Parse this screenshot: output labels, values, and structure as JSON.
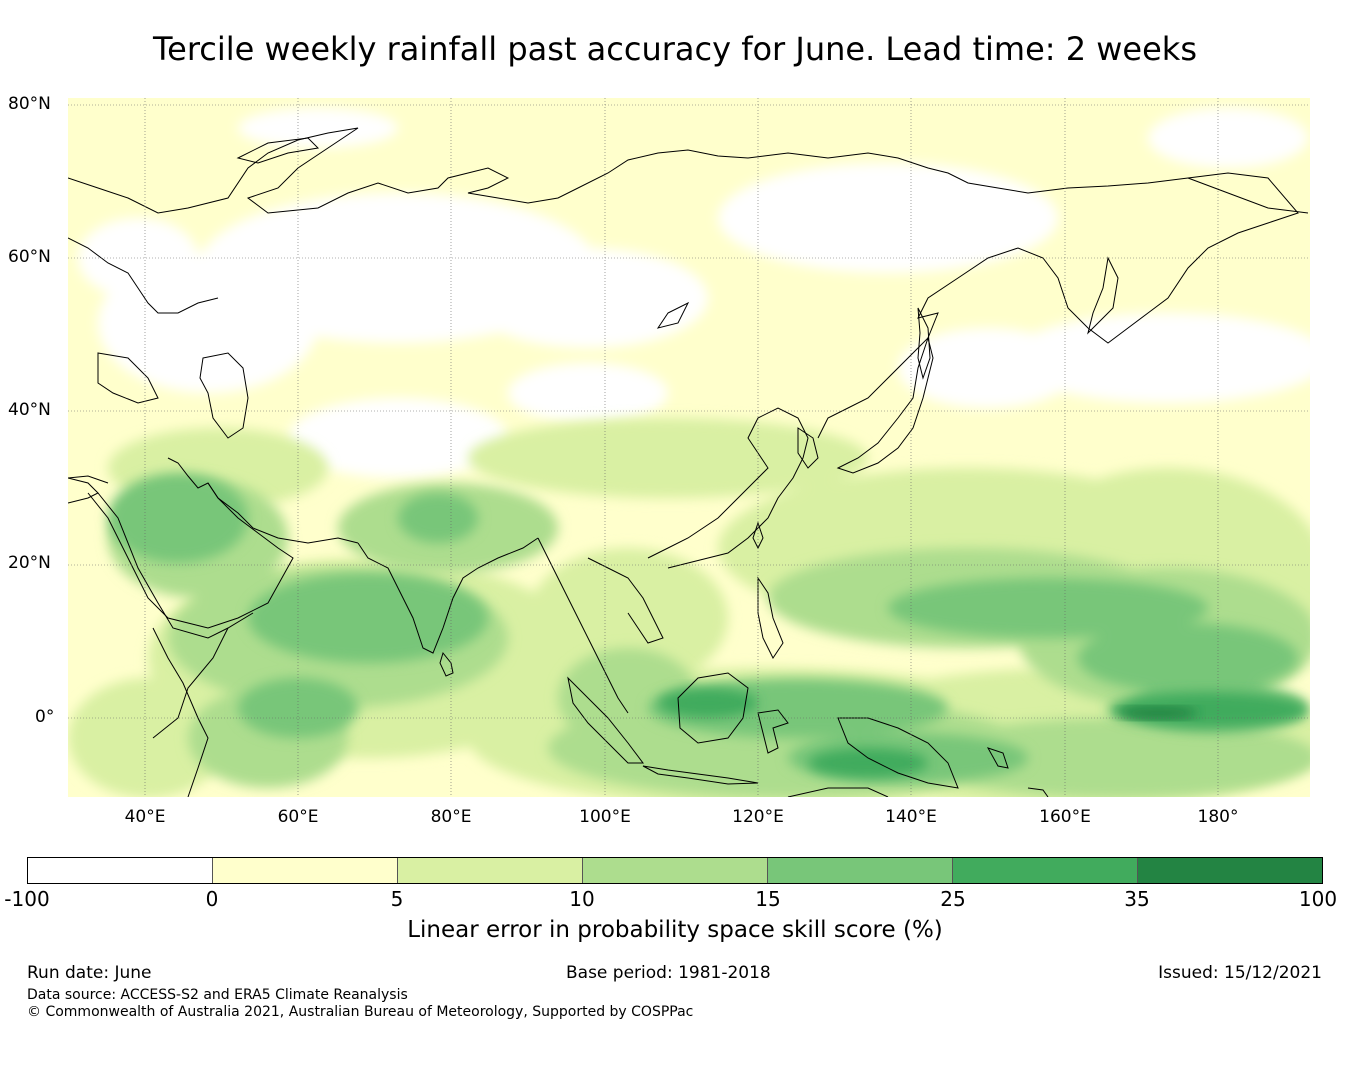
{
  "title": "Tercile weekly rainfall past accuracy for June. Lead time: 2 weeks",
  "map": {
    "lat_labels": [
      "80°N",
      "60°N",
      "40°N",
      "20°N",
      "0°"
    ],
    "lon_labels": [
      "40°E",
      "60°E",
      "80°E",
      "100°E",
      "120°E",
      "140°E",
      "160°E",
      "180°"
    ],
    "extent": {
      "lon_min": 30,
      "lon_max": 192,
      "lat_min": -10.5,
      "lat_max": 81
    }
  },
  "colorbar": {
    "ticks": [
      "-100",
      "0",
      "5",
      "10",
      "15",
      "25",
      "35",
      "100"
    ],
    "colors": [
      "#ffffff",
      "#ffffcc",
      "#d9f0a3",
      "#addd8e",
      "#78c679",
      "#41ab5d",
      "#238443"
    ],
    "label": "Linear error in probability space skill score (%)"
  },
  "footer": {
    "run_date": "Run date: June",
    "base_period": "Base period: 1981-2018",
    "issued": "Issued: 15/12/2021",
    "data_source": "Data source: ACCESS-S2 and ERA5 Climate Reanalysis",
    "copyright": "© Commonwealth of Australia 2021, Australian Bureau of Meteorology, Supported by COSPPac"
  }
}
